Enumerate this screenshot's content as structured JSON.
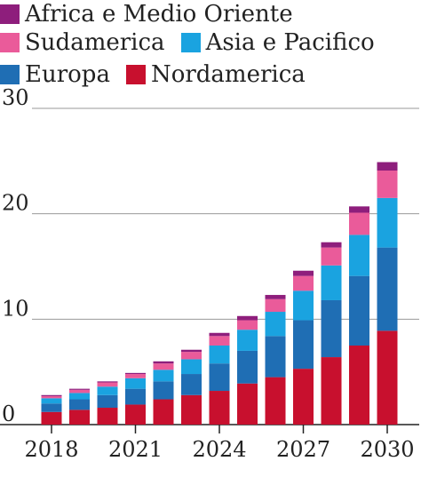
{
  "chart_data": {
    "type": "bar",
    "stacked": true,
    "categories": [
      "2018",
      "2019",
      "2020",
      "2021",
      "2022",
      "2023",
      "2024",
      "2025",
      "2026",
      "2027",
      "2028",
      "2029",
      "2030"
    ],
    "x_tick_labels": [
      "2018",
      "2021",
      "2024",
      "2027",
      "2030"
    ],
    "ylim": [
      0,
      30
    ],
    "y_ticks": [
      0,
      10,
      20,
      30
    ],
    "grid": true,
    "legend_position": "top-left",
    "series": [
      {
        "name": "Nordamerica",
        "color": "#c8102e",
        "values": [
          1.2,
          1.4,
          1.6,
          1.9,
          2.4,
          2.8,
          3.2,
          3.9,
          4.5,
          5.3,
          6.4,
          7.5,
          8.9
        ]
      },
      {
        "name": "Europa",
        "color": "#1f6eb4",
        "values": [
          0.8,
          1.0,
          1.2,
          1.5,
          1.7,
          2.0,
          2.6,
          3.1,
          3.9,
          4.6,
          5.4,
          6.6,
          7.9
        ]
      },
      {
        "name": "Asia e Pacifico",
        "color": "#1aa3e0",
        "values": [
          0.5,
          0.6,
          0.8,
          1.0,
          1.1,
          1.4,
          1.7,
          2.0,
          2.3,
          2.8,
          3.3,
          3.9,
          4.7
        ]
      },
      {
        "name": "Sudamerica",
        "color": "#ea5b9a",
        "values": [
          0.2,
          0.3,
          0.4,
          0.4,
          0.6,
          0.7,
          0.9,
          0.9,
          1.2,
          1.4,
          1.7,
          2.1,
          2.6
        ]
      },
      {
        "name": "Africa e Medio Oriente",
        "color": "#8e1e7c",
        "values": [
          0.1,
          0.1,
          0.1,
          0.1,
          0.2,
          0.2,
          0.3,
          0.4,
          0.4,
          0.5,
          0.5,
          0.6,
          0.8
        ]
      }
    ]
  },
  "legend": {
    "rows": [
      [
        "Africa e Medio Oriente"
      ],
      [
        "Sudamerica",
        "Asia e Pacifico"
      ],
      [
        "Europa",
        "Nordamerica"
      ]
    ]
  }
}
